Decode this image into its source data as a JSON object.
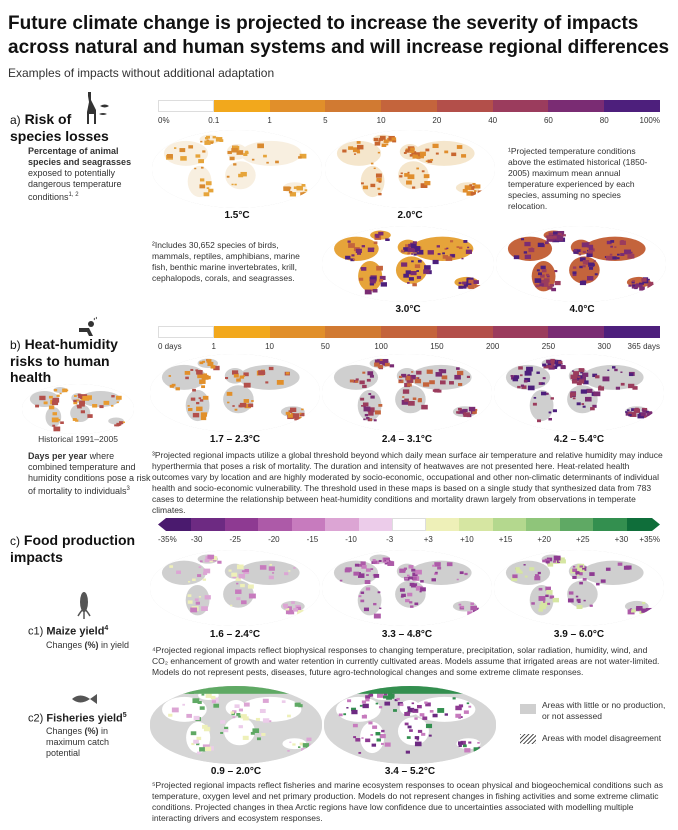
{
  "header": {
    "title": "Future climate change is projected to increase the severity of impacts across natural and human systems and will increase regional differences",
    "subtitle": "Examples of impacts without additional adaptation"
  },
  "section_a": {
    "prefix": "a)",
    "label": "Risk of species losses",
    "desc_bold": "Percentage of animal species and seagrasses",
    "desc": "exposed to potentially dangerous temperature conditions",
    "desc_sup": "1, 2",
    "note1": "¹Projected temperature conditions above the estimated historical (1850-2005) maximum mean annual temperature experienced by each species, assuming no species relocation.",
    "note2": "²Includes 30,652 species of birds, mammals, reptiles, amphibians, marine fish, benthic marine invertebrates, krill, cephalopods, corals, and seagrasses.",
    "scale_ticks": [
      "0%",
      "0.1",
      "1",
      "5",
      "10",
      "20",
      "40",
      "60",
      "80",
      "100%"
    ],
    "maps": [
      "1.5°C",
      "2.0°C",
      "3.0°C",
      "4.0°C"
    ]
  },
  "section_b": {
    "prefix": "b)",
    "label": "Heat-humidity risks to human health",
    "historical": "Historical 1991–2005",
    "desc_bold": "Days per year",
    "desc": "where combined temperature and humidity conditions pose a risk of mortality to individuals",
    "desc_sup": "3",
    "scale_ticks": [
      "0 days",
      "1",
      "10",
      "50",
      "100",
      "150",
      "200",
      "250",
      "300",
      "365 days"
    ],
    "maps": [
      "1.7 – 2.3°C",
      "2.4 – 3.1°C",
      "4.2 – 5.4°C"
    ],
    "note": "³Projected regional impacts utilize a global threshold beyond which daily mean surface air temperature and relative humidity may induce hyperthermia that poses a risk of mortality. The duration and intensity of heatwaves are not presented here. Heat-related health outcomes vary by location and are highly moderated by socio-economic, occupational and other non-climatic determinants of individual health and socio-economic vulnerability. The threshold used in these maps is based on a single study that synthesized data from 783 cases to determine the relationship between heat-humidity conditions and mortality drawn largely from observations in temperate climates."
  },
  "section_c": {
    "prefix": "c)",
    "label": "Food production impacts",
    "scale_ticks": [
      "-35%",
      "-30",
      "-25",
      "-20",
      "-15",
      "-10",
      "-3",
      "+3",
      "+10",
      "+15",
      "+20",
      "+25",
      "+30",
      "+35%"
    ],
    "maize": {
      "prefix": "c1)",
      "label": "Maize yield",
      "sup": "4",
      "desc_pre": "Changes ",
      "desc_bold": "(%)",
      "desc_post": " in yield",
      "maps": [
        "1.6 – 2.4°C",
        "3.3 – 4.8°C",
        "3.9 – 6.0°C"
      ],
      "note": "⁴Projected regional impacts reflect biophysical responses to changing temperature, precipitation, solar radiation, humidity, wind, and CO₂ enhancement of growth and water retention in currently cultivated areas. Models assume that irrigated areas are not water-limited. Models do not represent pests, diseases, future agro-technological changes and some extreme climate responses."
    },
    "fisheries": {
      "prefix": "c2)",
      "label": "Fisheries yield",
      "sup": "5",
      "desc_pre": "Changes ",
      "desc_bold": "(%)",
      "desc_post": " in maximum catch potential",
      "maps": [
        "0.9 – 2.0°C",
        "3.4 – 5.2°C"
      ],
      "note": "⁵Projected regional impacts reflect fisheries and marine ecosystem responses to ocean physical and biogeochemical conditions such as temperature, oxygen level and net primary production. Models do not represent changes in fishing activities and some extreme climatic conditions. Projected changes in thea Arctic regions have low confidence due to uncertainties associated with modelling multiple interacting drivers and ecosystem responses."
    },
    "legend": {
      "grey": "Areas with little or no production, or not assessed",
      "hatch": "Areas with model disagreement"
    }
  },
  "chart_data": [
    {
      "type": "heatmap",
      "title": "Risk of species losses",
      "color_scale": [
        "0%",
        "0.1",
        "1",
        "5",
        "10",
        "20",
        "40",
        "60",
        "80",
        "100%"
      ],
      "panels": [
        "1.5°C",
        "2.0°C",
        "3.0°C",
        "4.0°C"
      ],
      "colors": [
        "#ffffff",
        "#f2a81c",
        "#e18f2a",
        "#d17a32",
        "#c4643c",
        "#b34f4a",
        "#9b3c5d",
        "#7a2c73",
        "#4d1f7c"
      ]
    },
    {
      "type": "heatmap",
      "title": "Heat-humidity risks to human health",
      "color_scale": [
        "0 days",
        "1",
        "10",
        "50",
        "100",
        "150",
        "200",
        "250",
        "300",
        "365 days"
      ],
      "panels": [
        "Historical 1991–2005",
        "1.7 – 2.3°C",
        "2.4 – 3.1°C",
        "4.2 – 5.4°C"
      ],
      "colors": [
        "#ffffff",
        "#f2a81c",
        "#e18f2a",
        "#d17a32",
        "#c4643c",
        "#b34f4a",
        "#9b3c5d",
        "#7a2c73",
        "#4d1f7c"
      ]
    },
    {
      "type": "heatmap",
      "title": "Food production impacts",
      "color_scale": [
        "-35%",
        "-30",
        "-25",
        "-20",
        "-15",
        "-10",
        "-3",
        "+3",
        "+10",
        "+15",
        "+20",
        "+25",
        "+30",
        "+35%"
      ],
      "panels": [
        "Maize yield 1.6 – 2.4°C",
        "Maize yield 3.3 – 4.8°C",
        "Maize yield 3.9 – 6.0°C",
        "Fisheries yield 0.9 – 2.0°C",
        "Fisheries yield 3.4 – 5.2°C"
      ],
      "colors": [
        "#4a1a6e",
        "#6d2a82",
        "#8e3a92",
        "#ad5aa8",
        "#c77bbe",
        "#dca5d4",
        "#ecccea",
        "#ffffff",
        "#eef0b8",
        "#d6e6a2",
        "#b4d88e",
        "#8fc57a",
        "#5fa964",
        "#338f4f",
        "#0f6e3a"
      ]
    }
  ]
}
